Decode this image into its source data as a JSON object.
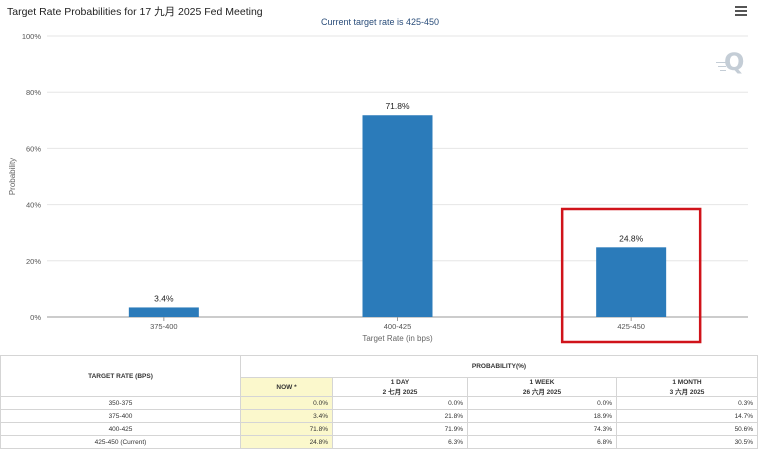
{
  "chart_title": "Target Rate Probabilities for 17 九月 2025 Fed Meeting",
  "chart_subtitle": "Current target rate is 425-450",
  "chart_data": {
    "type": "bar",
    "title": "Target Rate Probabilities for 17 九月 2025 Fed Meeting",
    "subtitle": "Current target rate is 425-450",
    "categories": [
      "375-400",
      "400-425",
      "425-450"
    ],
    "values": [
      3.4,
      71.8,
      24.8
    ],
    "data_labels": [
      "3.4%",
      "71.8%",
      "24.8%"
    ],
    "xlabel": "Target Rate (in bps)",
    "ylabel": "Probability",
    "ylim": [
      0,
      100
    ],
    "yticks": [
      "0%",
      "20%",
      "40%",
      "60%",
      "80%",
      "100%"
    ],
    "ytick_values": [
      0,
      20,
      40,
      60,
      80,
      100
    ],
    "grid": true,
    "bar_color": "#2b7bba",
    "highlight": {
      "category": "425-450",
      "color": "#d0131a"
    }
  },
  "table": {
    "col_rate": "TARGET RATE (BPS)",
    "col_prob": "PROBABILITY(%)",
    "periods": [
      {
        "label": "NOW *",
        "date": ""
      },
      {
        "label": "1 DAY",
        "date": "2 七月 2025"
      },
      {
        "label": "1 WEEK",
        "date": "26 六月 2025"
      },
      {
        "label": "1 MONTH",
        "date": "3 六月 2025"
      }
    ],
    "rows": [
      {
        "rate": "350-375",
        "values": [
          "0.0%",
          "0.0%",
          "0.0%",
          "0.3%"
        ]
      },
      {
        "rate": "375-400",
        "values": [
          "3.4%",
          "21.8%",
          "18.9%",
          "14.7%"
        ]
      },
      {
        "rate": "400-425",
        "values": [
          "71.8%",
          "71.9%",
          "74.3%",
          "50.6%"
        ]
      },
      {
        "rate": "425-450 (Current)",
        "values": [
          "24.8%",
          "6.3%",
          "6.8%",
          "30.5%"
        ]
      }
    ]
  },
  "icons": {
    "menu": "hamburger-menu-icon",
    "logo": "q-logo-icon"
  }
}
